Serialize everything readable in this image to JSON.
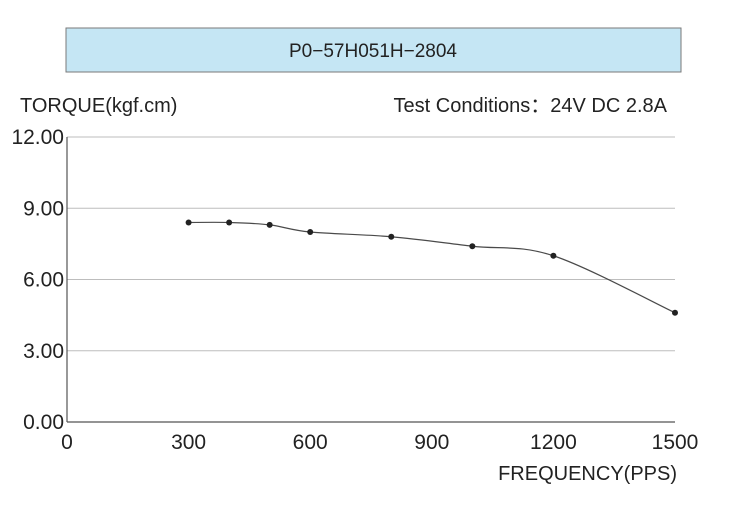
{
  "chart_data": {
    "type": "line",
    "title": "P0−57H051H−2804",
    "ylabel": "TORQUE(kgf.cm)",
    "xlabel": "FREQUENCY(PPS)",
    "annotation": "Test Conditions：24V DC  2.8A",
    "xlim": [
      0,
      1500
    ],
    "ylim": [
      0,
      12
    ],
    "grid": true,
    "x_ticks": [
      0,
      300,
      600,
      900,
      1200,
      1500
    ],
    "x_tick_labels": [
      "0",
      "300",
      "600",
      "900",
      "1200",
      "1500"
    ],
    "y_ticks": [
      0,
      3,
      6,
      9,
      12
    ],
    "y_tick_labels": [
      "0.00",
      "3.00",
      "6.00",
      "9.00",
      "12.00"
    ],
    "series": [
      {
        "name": "Torque",
        "x": [
          300,
          400,
          500,
          600,
          800,
          1000,
          1200,
          1500
        ],
        "y": [
          8.4,
          8.4,
          8.3,
          8.0,
          7.8,
          7.4,
          7.0,
          4.6
        ]
      }
    ]
  },
  "colors": {
    "title_box_fill": "#c5e6f4",
    "title_box_border": "#7a7a7a",
    "axis": "#555555",
    "grid": "#bdbdbd",
    "line": "#4a4a4a",
    "point": "#222222"
  }
}
